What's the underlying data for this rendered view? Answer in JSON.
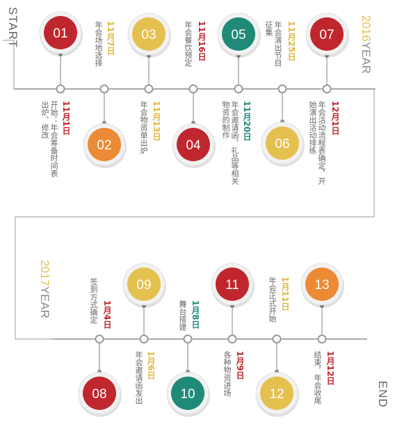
{
  "labels": {
    "start": "START",
    "end": "END",
    "year_word": "YEAR",
    "year_2016": "2016",
    "year_2017": "2017"
  },
  "colors": {
    "red": "#c0262d",
    "orange": "#ec8a35",
    "yellow": "#e4c04f",
    "teal": "#1f8a78",
    "line": "#aaaaaa",
    "date_red": "#c0262d",
    "date_yellow": "#e2b83f",
    "date_teal": "#1f8a78"
  },
  "milestones": [
    {
      "num": "01",
      "color": "red",
      "date": "11月1日",
      "date_color": "date_red",
      "text": "开始：年会筹备时间表\n出炉、修改"
    },
    {
      "num": "02",
      "color": "orange",
      "date": "11月7日",
      "date_color": "date_yellow",
      "text": "年会场地选择"
    },
    {
      "num": "03",
      "color": "yellow",
      "date": "11月13日",
      "date_color": "date_yellow",
      "text": "年会物资单出炉"
    },
    {
      "num": "04",
      "color": "red",
      "date": "11月16日",
      "date_color": "date_red",
      "text": "年会餐饮预定"
    },
    {
      "num": "05",
      "color": "teal",
      "date": "11月20日",
      "date_color": "date_teal",
      "text": "年会邀请函、礼品等相关\n物资的制作"
    },
    {
      "num": "06",
      "color": "yellow",
      "date": "11月25日",
      "date_color": "date_yellow",
      "text": "年会演出节目\n征集"
    },
    {
      "num": "07",
      "color": "red",
      "date": "12月1日",
      "date_color": "date_red",
      "text": "年会活动流程表确定，开\n始演出活动排练"
    },
    {
      "num": "08",
      "color": "red",
      "date": "1月4日",
      "date_color": "date_red",
      "text": "签到方式确定"
    },
    {
      "num": "09",
      "color": "yellow",
      "date": "1月6日",
      "date_color": "date_yellow",
      "text": "年会邀请函发出"
    },
    {
      "num": "10",
      "color": "teal",
      "date": "1月8日",
      "date_color": "date_teal",
      "text": "舞台搭建"
    },
    {
      "num": "11",
      "color": "red",
      "date": "1月9日",
      "date_color": "date_red",
      "text": "各种物资进场"
    },
    {
      "num": "12",
      "color": "yellow",
      "date": "1月11日",
      "date_color": "date_yellow",
      "text": "年会正式开始"
    },
    {
      "num": "13",
      "color": "orange",
      "date": "1月12日",
      "date_color": "date_red",
      "text": "结束，年会收尾"
    }
  ]
}
